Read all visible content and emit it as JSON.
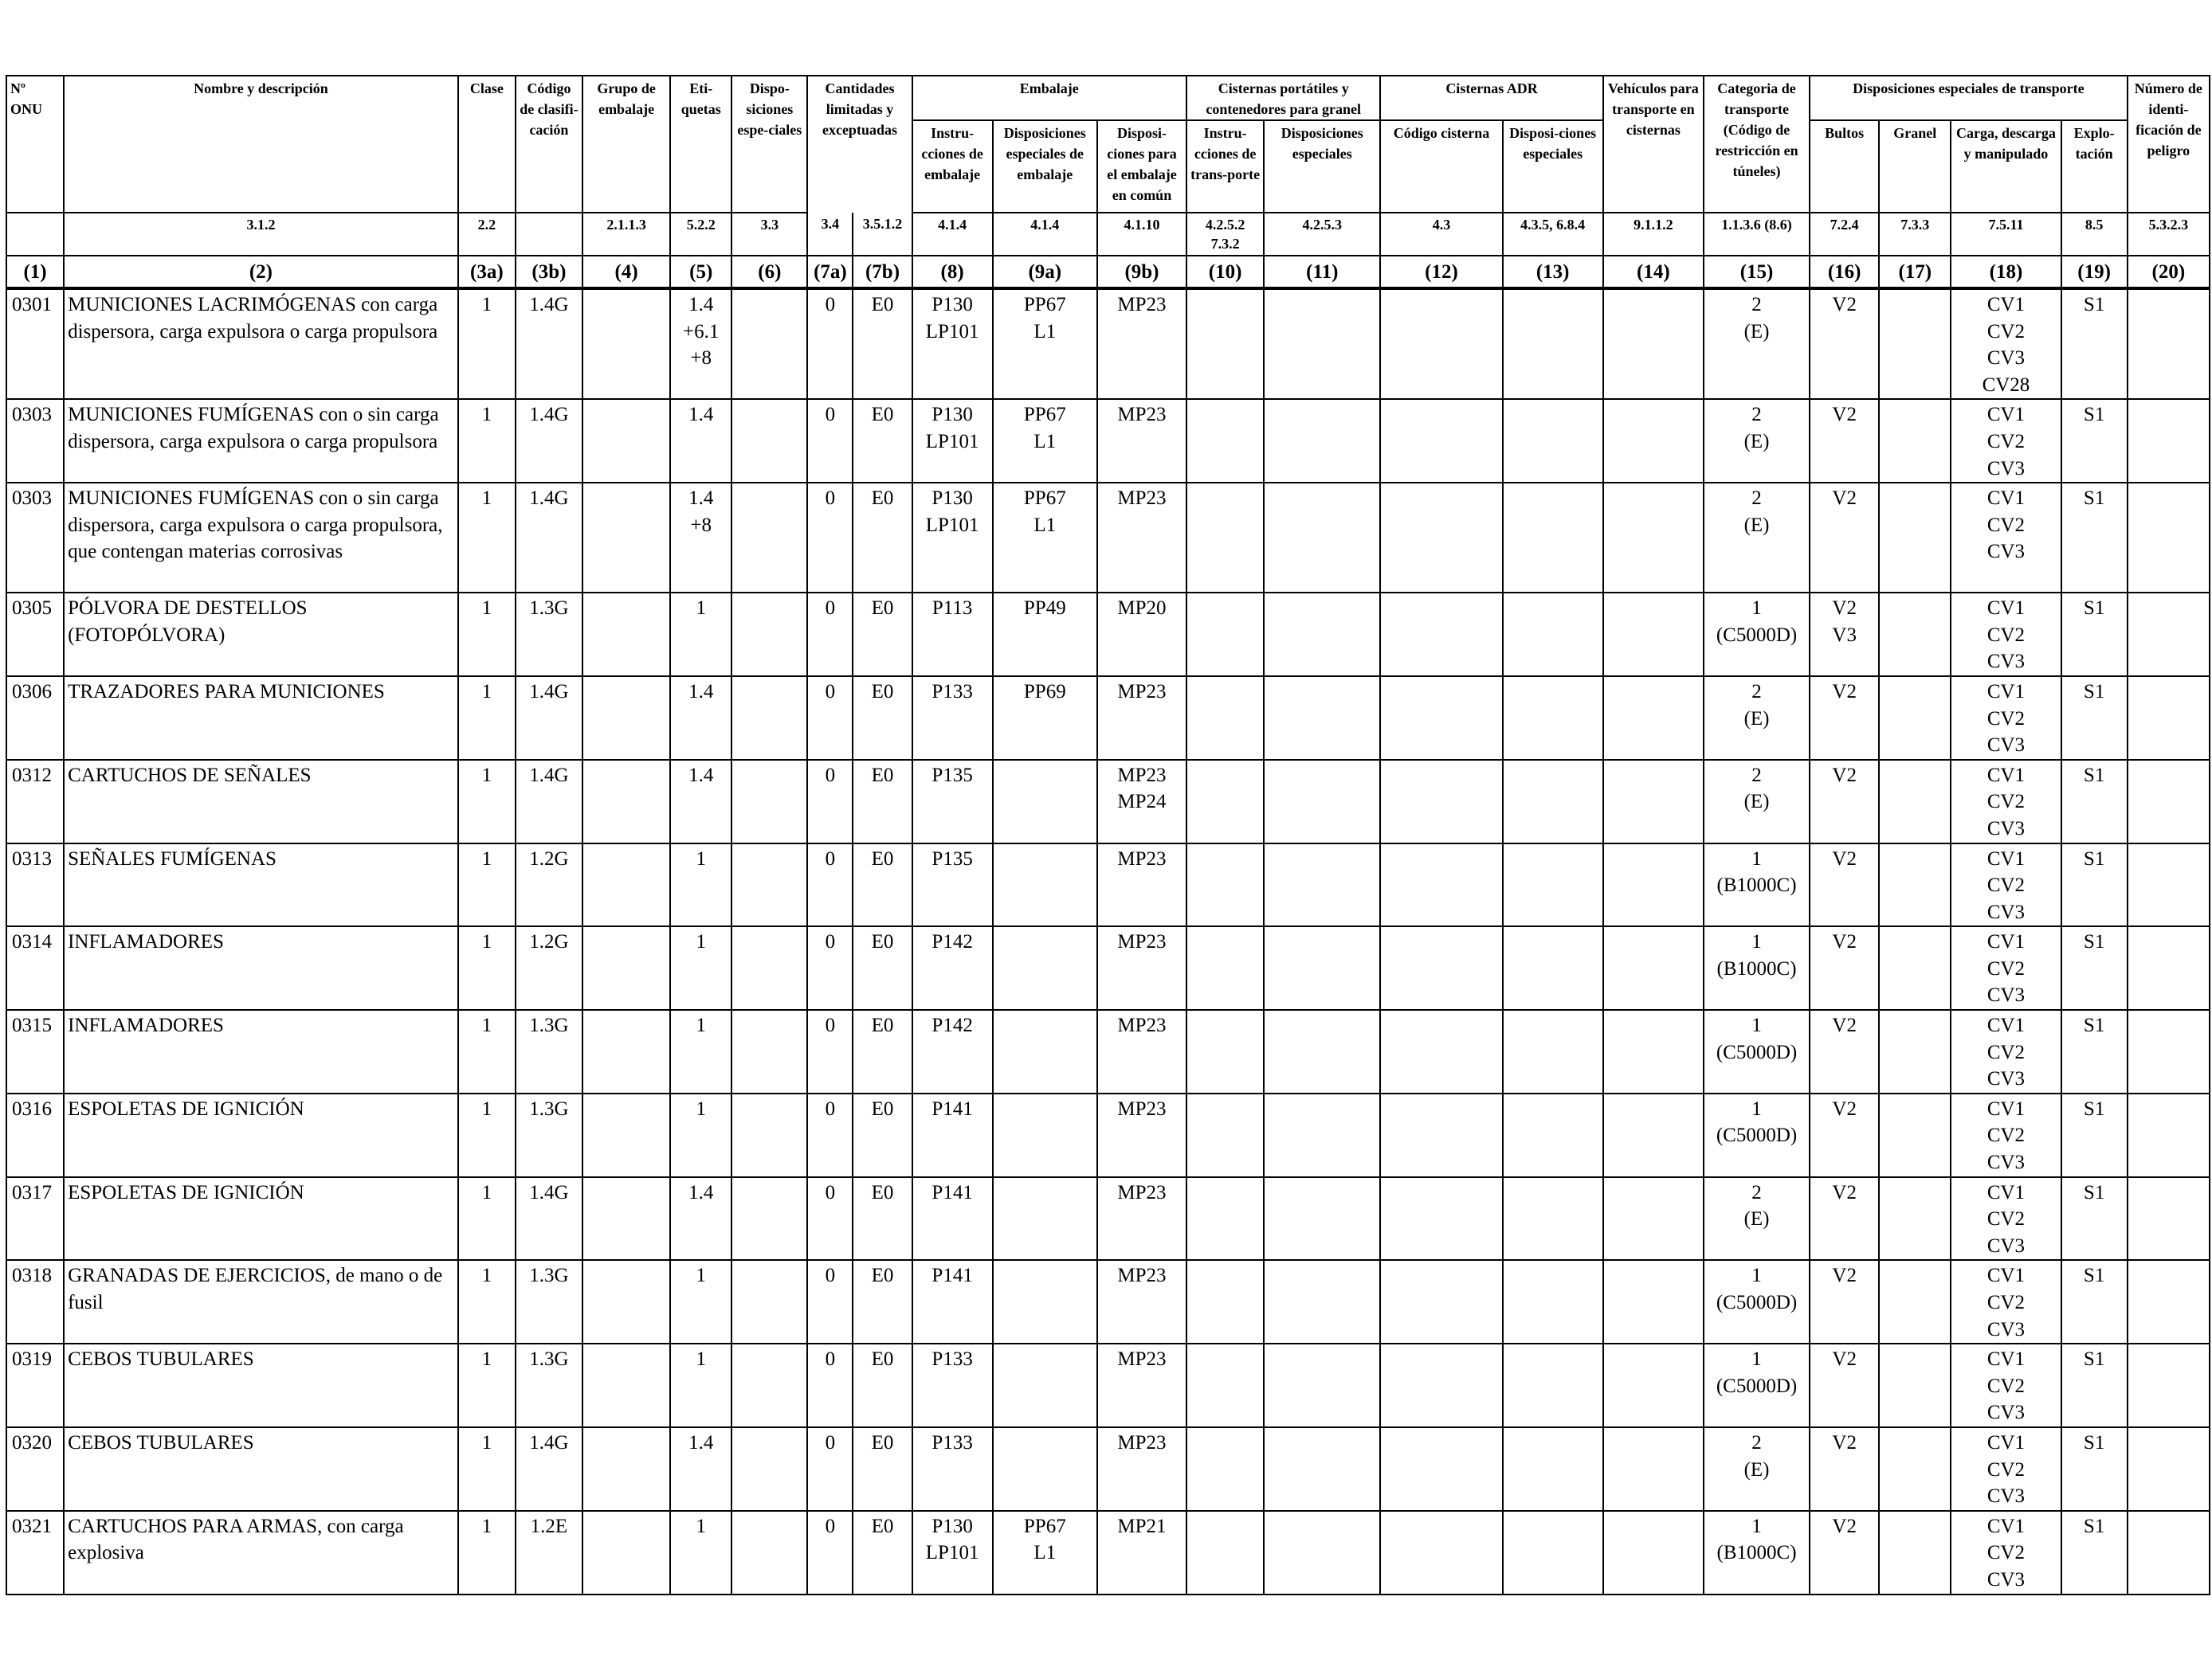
{
  "header": {
    "onu": "Nº ONU",
    "name": "Nombre y descripción",
    "name_ref": "3.1.2",
    "clase": "Clase",
    "clase_ref": "2.2",
    "codigo": "Código de clasifi-cación",
    "grupo": "Grupo de embalaje",
    "grupo_ref": "2.1.1.3",
    "etiquetas": "Eti-quetas",
    "etiquetas_ref": "5.2.2",
    "disposiciones": "Dispo-siciones espe-ciales",
    "disposiciones_ref": "3.3",
    "cantidades": "Cantidades limitadas y exceptuadas",
    "cant_ref_a": "3.4",
    "cant_ref_b": "3.5.1.2",
    "embalaje": "Embalaje",
    "emb_instr": "Instru-cciones de embalaje",
    "emb_instr_ref": "4.1.4",
    "emb_disp": "Disposiciones especiales de embalaje",
    "emb_disp_ref": "4.1.4",
    "emb_comun": "Disposi-ciones para el embalaje en común",
    "emb_comun_ref": "4.1.10",
    "cisternas_port": "Cisternas portátiles y contenedores para granel",
    "cp_instr": "Instru-cciones de trans-porte",
    "cp_instr_ref": "4.2.5.2 7.3.2",
    "cp_disp": "Disposiciones especiales",
    "cp_disp_ref": "4.2.5.3",
    "cisternas_adr": "Cisternas ADR",
    "adr_codigo": "Código cisterna",
    "adr_codigo_ref": "4.3",
    "adr_disp": "Disposi-ciones especiales",
    "adr_disp_ref": "4.3.5, 6.8.4",
    "vehiculos": "Vehículos para transporte en cisternas",
    "vehiculos_ref": "9.1.1.2",
    "categoria": "Categoria de transporte (Código de restricción en túneles)",
    "categoria_ref": "1.1.3.6 (8.6)",
    "disp_transporte": "Disposiciones especiales de transporte",
    "bultos": "Bultos",
    "bultos_ref": "7.2.4",
    "granel": "Granel",
    "granel_ref": "7.3.3",
    "carga": "Carga, descarga y manipulado",
    "carga_ref": "7.5.11",
    "explotacion": "Explo-tación",
    "explotacion_ref": "8.5",
    "numero": "Número de identi-ficación de peligro",
    "numero_ref": "5.3.2.3"
  },
  "column_numbers": [
    "(1)",
    "(2)",
    "(3a)",
    "(3b)",
    "(4)",
    "(5)",
    "(6)",
    "(7a)",
    "(7b)",
    "(8)",
    "(9a)",
    "(9b)",
    "(10)",
    "(11)",
    "(12)",
    "(13)",
    "(14)",
    "(15)",
    "(16)",
    "(17)",
    "(18)",
    "(19)",
    "(20)"
  ],
  "rows": [
    {
      "onu": "0301",
      "name": "MUNICIONES LACRIMÓGENAS con carga dispersora, carga expulsora o carga propulsora",
      "clase": "1",
      "codigo": "1.4G",
      "grupo": "",
      "etiquetas": [
        "1.4",
        "+6.1",
        "+8"
      ],
      "disp": "",
      "cant_a": "0",
      "cant_b": "E0",
      "instr": [
        "P130",
        "LP101"
      ],
      "disp_emb": [
        "PP67",
        "L1"
      ],
      "comun": [
        "MP23"
      ],
      "cp_instr": "",
      "cp_disp": "",
      "adr_cod": "",
      "adr_disp": "",
      "veh": "",
      "cat": [
        "2",
        "(E)"
      ],
      "bultos": [
        "V2"
      ],
      "granel": "",
      "carga": [
        "CV1",
        "CV2",
        "CV3",
        "CV28"
      ],
      "expl": "S1",
      "num": ""
    },
    {
      "onu": "0303",
      "name": "MUNICIONES FUMÍGENAS con o sin carga dispersora, carga expulsora o carga propulsora",
      "clase": "1",
      "codigo": "1.4G",
      "grupo": "",
      "etiquetas": [
        "1.4"
      ],
      "disp": "",
      "cant_a": "0",
      "cant_b": "E0",
      "instr": [
        "P130",
        "LP101"
      ],
      "disp_emb": [
        "PP67",
        "L1"
      ],
      "comun": [
        "MP23"
      ],
      "cp_instr": "",
      "cp_disp": "",
      "adr_cod": "",
      "adr_disp": "",
      "veh": "",
      "cat": [
        "2",
        "(E)"
      ],
      "bultos": [
        "V2"
      ],
      "granel": "",
      "carga": [
        "CV1",
        "CV2",
        "CV3"
      ],
      "expl": "S1",
      "num": ""
    },
    {
      "onu": "0303",
      "name": "MUNICIONES FUMÍGENAS con o sin carga dispersora, carga expulsora o carga propulsora, que contengan materias corrosivas",
      "clase": "1",
      "codigo": "1.4G",
      "grupo": "",
      "etiquetas": [
        "1.4",
        "+8"
      ],
      "disp": "",
      "cant_a": "0",
      "cant_b": "E0",
      "instr": [
        "P130",
        "LP101"
      ],
      "disp_emb": [
        "PP67",
        "L1"
      ],
      "comun": [
        "MP23"
      ],
      "cp_instr": "",
      "cp_disp": "",
      "adr_cod": "",
      "adr_disp": "",
      "veh": "",
      "cat": [
        "2",
        "(E)"
      ],
      "bultos": [
        "V2"
      ],
      "granel": "",
      "carga": [
        "CV1",
        "CV2",
        "CV3"
      ],
      "expl": "S1",
      "num": ""
    },
    {
      "onu": "0305",
      "name": "PÓLVORA DE DESTELLOS (FOTOPÓLVORA)",
      "clase": "1",
      "codigo": "1.3G",
      "grupo": "",
      "etiquetas": [
        "1"
      ],
      "disp": "",
      "cant_a": "0",
      "cant_b": "E0",
      "instr": [
        "P113"
      ],
      "disp_emb": [
        "PP49"
      ],
      "comun": [
        "MP20"
      ],
      "cp_instr": "",
      "cp_disp": "",
      "adr_cod": "",
      "adr_disp": "",
      "veh": "",
      "cat": [
        "1",
        "(C5000D)"
      ],
      "bultos": [
        "V2",
        "V3"
      ],
      "granel": "",
      "carga": [
        "CV1",
        "CV2",
        "CV3"
      ],
      "expl": "S1",
      "num": ""
    },
    {
      "onu": "0306",
      "name": "TRAZADORES PARA MUNICIONES",
      "clase": "1",
      "codigo": "1.4G",
      "grupo": "",
      "etiquetas": [
        "1.4"
      ],
      "disp": "",
      "cant_a": "0",
      "cant_b": "E0",
      "instr": [
        "P133"
      ],
      "disp_emb": [
        "PP69"
      ],
      "comun": [
        "MP23"
      ],
      "cp_instr": "",
      "cp_disp": "",
      "adr_cod": "",
      "adr_disp": "",
      "veh": "",
      "cat": [
        "2",
        "(E)"
      ],
      "bultos": [
        "V2"
      ],
      "granel": "",
      "carga": [
        "CV1",
        "CV2",
        "CV3"
      ],
      "expl": "S1",
      "num": ""
    },
    {
      "onu": "0312",
      "name": "CARTUCHOS DE SEÑALES",
      "clase": "1",
      "codigo": "1.4G",
      "grupo": "",
      "etiquetas": [
        "1.4"
      ],
      "disp": "",
      "cant_a": "0",
      "cant_b": "E0",
      "instr": [
        "P135"
      ],
      "disp_emb": [],
      "comun": [
        "MP23",
        "MP24"
      ],
      "cp_instr": "",
      "cp_disp": "",
      "adr_cod": "",
      "adr_disp": "",
      "veh": "",
      "cat": [
        "2",
        "(E)"
      ],
      "bultos": [
        "V2"
      ],
      "granel": "",
      "carga": [
        "CV1",
        "CV2",
        "CV3"
      ],
      "expl": "S1",
      "num": ""
    },
    {
      "onu": "0313",
      "name": "SEÑALES FUMÍGENAS",
      "clase": "1",
      "codigo": "1.2G",
      "grupo": "",
      "etiquetas": [
        "1"
      ],
      "disp": "",
      "cant_a": "0",
      "cant_b": "E0",
      "instr": [
        "P135"
      ],
      "disp_emb": [],
      "comun": [
        "MP23"
      ],
      "cp_instr": "",
      "cp_disp": "",
      "adr_cod": "",
      "adr_disp": "",
      "veh": "",
      "cat": [
        "1",
        "(B1000C)"
      ],
      "bultos": [
        "V2"
      ],
      "granel": "",
      "carga": [
        "CV1",
        "CV2",
        "CV3"
      ],
      "expl": "S1",
      "num": ""
    },
    {
      "onu": "0314",
      "name": "INFLAMADORES",
      "clase": "1",
      "codigo": "1.2G",
      "grupo": "",
      "etiquetas": [
        "1"
      ],
      "disp": "",
      "cant_a": "0",
      "cant_b": "E0",
      "instr": [
        "P142"
      ],
      "disp_emb": [],
      "comun": [
        "MP23"
      ],
      "cp_instr": "",
      "cp_disp": "",
      "adr_cod": "",
      "adr_disp": "",
      "veh": "",
      "cat": [
        "1",
        "(B1000C)"
      ],
      "bultos": [
        "V2"
      ],
      "granel": "",
      "carga": [
        "CV1",
        "CV2",
        "CV3"
      ],
      "expl": "S1",
      "num": ""
    },
    {
      "onu": "0315",
      "name": "INFLAMADORES",
      "clase": "1",
      "codigo": "1.3G",
      "grupo": "",
      "etiquetas": [
        "1"
      ],
      "disp": "",
      "cant_a": "0",
      "cant_b": "E0",
      "instr": [
        "P142"
      ],
      "disp_emb": [],
      "comun": [
        "MP23"
      ],
      "cp_instr": "",
      "cp_disp": "",
      "adr_cod": "",
      "adr_disp": "",
      "veh": "",
      "cat": [
        "1",
        "(C5000D)"
      ],
      "bultos": [
        "V2"
      ],
      "granel": "",
      "carga": [
        "CV1",
        "CV2",
        "CV3"
      ],
      "expl": "S1",
      "num": ""
    },
    {
      "onu": "0316",
      "name": "ESPOLETAS DE IGNICIÓN",
      "clase": "1",
      "codigo": "1.3G",
      "grupo": "",
      "etiquetas": [
        "1"
      ],
      "disp": "",
      "cant_a": "0",
      "cant_b": "E0",
      "instr": [
        "P141"
      ],
      "disp_emb": [],
      "comun": [
        "MP23"
      ],
      "cp_instr": "",
      "cp_disp": "",
      "adr_cod": "",
      "adr_disp": "",
      "veh": "",
      "cat": [
        "1",
        "(C5000D)"
      ],
      "bultos": [
        "V2"
      ],
      "granel": "",
      "carga": [
        "CV1",
        "CV2",
        "CV3"
      ],
      "expl": "S1",
      "num": ""
    },
    {
      "onu": "0317",
      "name": "ESPOLETAS DE IGNICIÓN",
      "clase": "1",
      "codigo": "1.4G",
      "grupo": "",
      "etiquetas": [
        "1.4"
      ],
      "disp": "",
      "cant_a": "0",
      "cant_b": "E0",
      "instr": [
        "P141"
      ],
      "disp_emb": [],
      "comun": [
        "MP23"
      ],
      "cp_instr": "",
      "cp_disp": "",
      "adr_cod": "",
      "adr_disp": "",
      "veh": "",
      "cat": [
        "2",
        "(E)"
      ],
      "bultos": [
        "V2"
      ],
      "granel": "",
      "carga": [
        "CV1",
        "CV2",
        "CV3"
      ],
      "expl": "S1",
      "num": ""
    },
    {
      "onu": "0318",
      "name": "GRANADAS DE EJERCICIOS, de mano o de fusil",
      "clase": "1",
      "codigo": "1.3G",
      "grupo": "",
      "etiquetas": [
        "1"
      ],
      "disp": "",
      "cant_a": "0",
      "cant_b": "E0",
      "instr": [
        "P141"
      ],
      "disp_emb": [],
      "comun": [
        "MP23"
      ],
      "cp_instr": "",
      "cp_disp": "",
      "adr_cod": "",
      "adr_disp": "",
      "veh": "",
      "cat": [
        "1",
        "(C5000D)"
      ],
      "bultos": [
        "V2"
      ],
      "granel": "",
      "carga": [
        "CV1",
        "CV2",
        "CV3"
      ],
      "expl": "S1",
      "num": ""
    },
    {
      "onu": "0319",
      "name": "CEBOS TUBULARES",
      "clase": "1",
      "codigo": "1.3G",
      "grupo": "",
      "etiquetas": [
        "1"
      ],
      "disp": "",
      "cant_a": "0",
      "cant_b": "E0",
      "instr": [
        "P133"
      ],
      "disp_emb": [],
      "comun": [
        "MP23"
      ],
      "cp_instr": "",
      "cp_disp": "",
      "adr_cod": "",
      "adr_disp": "",
      "veh": "",
      "cat": [
        "1",
        "(C5000D)"
      ],
      "bultos": [
        "V2"
      ],
      "granel": "",
      "carga": [
        "CV1",
        "CV2",
        "CV3"
      ],
      "expl": "S1",
      "num": ""
    },
    {
      "onu": "0320",
      "name": "CEBOS TUBULARES",
      "clase": "1",
      "codigo": "1.4G",
      "grupo": "",
      "etiquetas": [
        "1.4"
      ],
      "disp": "",
      "cant_a": "0",
      "cant_b": "E0",
      "instr": [
        "P133"
      ],
      "disp_emb": [],
      "comun": [
        "MP23"
      ],
      "cp_instr": "",
      "cp_disp": "",
      "adr_cod": "",
      "adr_disp": "",
      "veh": "",
      "cat": [
        "2",
        "(E)"
      ],
      "bultos": [
        "V2"
      ],
      "granel": "",
      "carga": [
        "CV1",
        "CV2",
        "CV3"
      ],
      "expl": "S1",
      "num": ""
    },
    {
      "onu": "0321",
      "name": "CARTUCHOS PARA ARMAS, con carga explosiva",
      "clase": "1",
      "codigo": "1.2E",
      "grupo": "",
      "etiquetas": [
        "1"
      ],
      "disp": "",
      "cant_a": "0",
      "cant_b": "E0",
      "instr": [
        "P130",
        "LP101"
      ],
      "disp_emb": [
        "PP67",
        "L1"
      ],
      "comun": [
        "MP21"
      ],
      "cp_instr": "",
      "cp_disp": "",
      "adr_cod": "",
      "adr_disp": "",
      "veh": "",
      "cat": [
        "1",
        "(B1000C)"
      ],
      "bultos": [
        "V2"
      ],
      "granel": "",
      "carga": [
        "CV1",
        "CV2",
        "CV3"
      ],
      "expl": "S1",
      "num": ""
    }
  ]
}
